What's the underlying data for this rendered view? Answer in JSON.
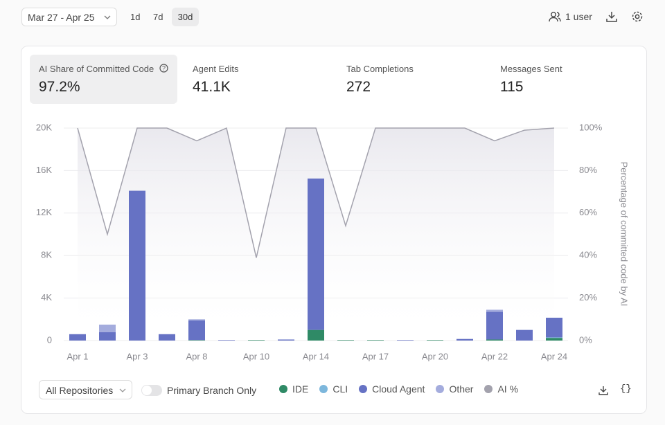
{
  "header": {
    "date_range": "Mar 27 - Apr 25",
    "ranges": [
      "1d",
      "7d",
      "30d"
    ],
    "users": "1 user"
  },
  "metrics": [
    {
      "label": "AI Share of Committed Code",
      "value": "97.2%"
    },
    {
      "label": "Agent Edits",
      "value": "41.1K"
    },
    {
      "label": "Tab Completions",
      "value": "272"
    },
    {
      "label": "Messages Sent",
      "value": "115"
    }
  ],
  "controls": {
    "repositories": "All Repositories",
    "toggle": "Primary Branch Only"
  },
  "chart_data": {
    "type": "bar",
    "stacked": true,
    "categories": [
      "Apr 1",
      null,
      "Apr 3",
      null,
      "Apr 8",
      null,
      "Apr 10",
      null,
      "Apr 14",
      null,
      "Apr 17",
      null,
      "Apr 20",
      null,
      "Apr 22",
      null,
      "Apr 24"
    ],
    "series": [
      {
        "name": "IDE",
        "color": "#2f8a66",
        "values": [
          0,
          0,
          0,
          0,
          50,
          0,
          50,
          0,
          1000,
          50,
          50,
          0,
          50,
          0,
          100,
          0,
          250
        ]
      },
      {
        "name": "CLI",
        "color": "#7db7dc",
        "values": [
          0,
          0,
          0,
          0,
          0,
          0,
          0,
          0,
          0,
          0,
          0,
          0,
          0,
          0,
          0,
          0,
          50
        ]
      },
      {
        "name": "Cloud Agent",
        "color": "#6672c4",
        "values": [
          600,
          800,
          14100,
          600,
          1850,
          50,
          0,
          100,
          14250,
          0,
          0,
          50,
          0,
          150,
          2600,
          1000,
          1850
        ]
      },
      {
        "name": "Other",
        "color": "#a4acdd",
        "values": [
          0,
          700,
          0,
          0,
          100,
          0,
          0,
          0,
          0,
          0,
          0,
          0,
          0,
          0,
          200,
          0,
          0
        ]
      },
      {
        "name": "AI %",
        "color": "#a3a2ad",
        "axis": "y2",
        "values": [
          100,
          50,
          100,
          100,
          94,
          100,
          39,
          100,
          100,
          54,
          100,
          100,
          100,
          100,
          94,
          99,
          100
        ]
      }
    ],
    "ylim": [
      0,
      20000
    ],
    "yticks": [
      {
        "value": 0,
        "label": "0"
      },
      {
        "value": 4000,
        "label": "4K"
      },
      {
        "value": 8000,
        "label": "8K"
      },
      {
        "value": 12000,
        "label": "12K"
      },
      {
        "value": 16000,
        "label": "16K"
      },
      {
        "value": 20000,
        "label": "20K"
      }
    ],
    "y2lim": [
      0,
      100
    ],
    "y2ticks": [
      {
        "value": 0,
        "label": "0%"
      },
      {
        "value": 20,
        "label": "20%"
      },
      {
        "value": 40,
        "label": "40%"
      },
      {
        "value": 60,
        "label": "60%"
      },
      {
        "value": 80,
        "label": "80%"
      },
      {
        "value": 100,
        "label": "100%"
      }
    ],
    "y2label": "Percentage of committed code by AI",
    "grid": true
  }
}
